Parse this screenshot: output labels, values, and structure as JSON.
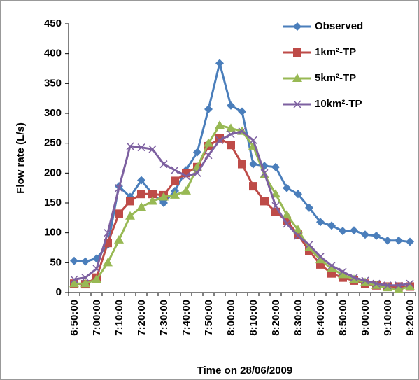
{
  "chart_data": {
    "type": "line",
    "y_label": "Flow rate (L/s)",
    "x_label": "Time on 28/06/2009",
    "categories": [
      "6:50:00",
      null,
      "7:00:00",
      null,
      "7:10:00",
      null,
      "7:20:00",
      null,
      "7:30:00",
      null,
      "7:40:00",
      null,
      "7:50:00",
      null,
      "8:00:00",
      null,
      "8:10:00",
      null,
      "8:20:00",
      null,
      "8:30:00",
      null,
      "8:40:00",
      null,
      "8:50:00",
      null,
      "9:00:00",
      null,
      "9:10:00",
      null,
      "9:20:00"
    ],
    "series": [
      {
        "name": "Observed",
        "color": "#4a7ebb",
        "marker": "diamond",
        "values": [
          53,
          52,
          57,
          80,
          178,
          160,
          188,
          165,
          150,
          170,
          205,
          235,
          307,
          384,
          313,
          303,
          215,
          212,
          210,
          175,
          165,
          142,
          118,
          112,
          103,
          104,
          97,
          95,
          87,
          87,
          85
        ]
      },
      {
        "name": "1km²-TP",
        "color": "#be4b48",
        "marker": "square",
        "values": [
          15,
          14,
          25,
          83,
          132,
          153,
          165,
          165,
          163,
          187,
          200,
          210,
          245,
          258,
          247,
          215,
          178,
          153,
          135,
          120,
          97,
          70,
          47,
          32,
          25,
          20,
          15,
          12,
          10,
          10,
          10
        ]
      },
      {
        "name": "5km²-TP",
        "color": "#98b954",
        "marker": "triangle",
        "values": [
          15,
          15,
          22,
          50,
          88,
          128,
          143,
          153,
          160,
          163,
          170,
          210,
          250,
          280,
          275,
          270,
          245,
          197,
          165,
          130,
          105,
          75,
          55,
          40,
          30,
          22,
          17,
          12,
          8,
          5,
          10
        ]
      },
      {
        "name": "10km²-TP",
        "color": "#7d60a0",
        "marker": "x",
        "values": [
          22,
          25,
          40,
          100,
          175,
          245,
          243,
          240,
          215,
          205,
          195,
          200,
          230,
          255,
          265,
          270,
          255,
          200,
          145,
          115,
          95,
          80,
          60,
          45,
          35,
          25,
          20,
          15,
          12,
          12,
          15
        ]
      }
    ],
    "ylim": [
      0,
      450
    ],
    "yticks": [
      0,
      50,
      100,
      150,
      200,
      250,
      300,
      350,
      400,
      450
    ],
    "grid": false,
    "legend": "top-right"
  }
}
